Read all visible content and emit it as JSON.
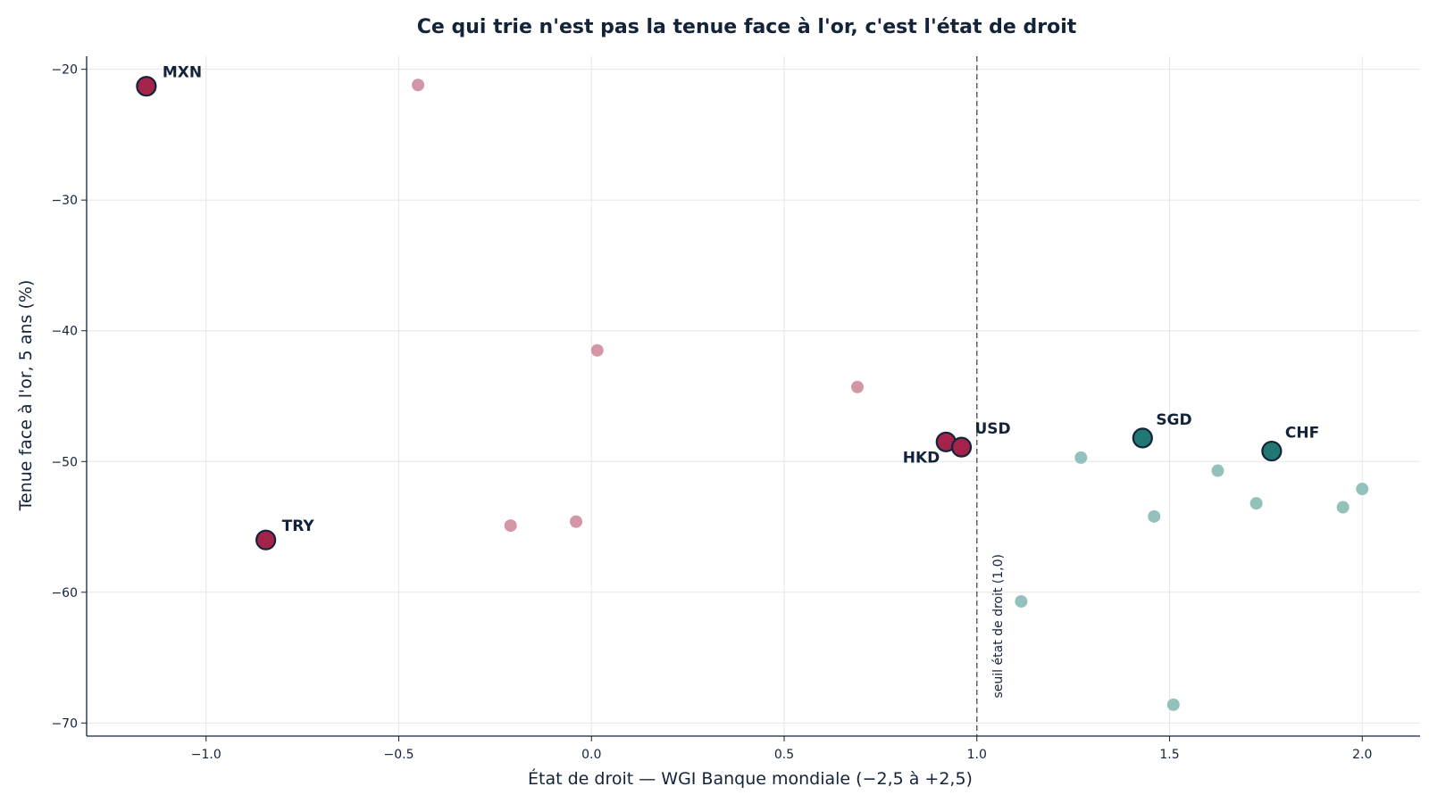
{
  "chart_data": {
    "type": "scatter",
    "title": "Ce qui trie n'est pas la tenue face à l'or, c'est l'état de droit",
    "xlabel": "État de droit — WGI Banque mondiale (−2,5 à +2,5)",
    "ylabel": "Tenue face à l'or, 5 ans (%)",
    "xlim": [
      -1.31,
      2.15
    ],
    "ylim": [
      -71.0,
      -19.0
    ],
    "xticks": [
      -1.0,
      -0.5,
      0.0,
      0.5,
      1.0,
      1.5,
      2.0
    ],
    "xtick_labels": [
      "−1.0",
      "−0.5",
      "0.0",
      "0.5",
      "1.0",
      "1.5",
      "2.0"
    ],
    "yticks": [
      -20,
      -30,
      -40,
      -50,
      -60,
      -70
    ],
    "ytick_labels": [
      "−20",
      "−30",
      "−40",
      "−50",
      "−60",
      "−70"
    ],
    "grid": true,
    "threshold": {
      "x": 1.0,
      "label": "seuil état de droit (1,0)"
    },
    "colors": {
      "below_highlight": "#a3234a",
      "below_faded": "#d396a6",
      "above_highlight": "#217873",
      "above_faded": "#93c1bb",
      "outline": "#13233a",
      "grid": "#e6e6e6"
    },
    "series": [
      {
        "group": "below",
        "points": [
          {
            "x": -1.155,
            "y": -21.3,
            "label": "MXN",
            "highlight": true
          },
          {
            "x": -0.845,
            "y": -56.0,
            "label": "TRY",
            "highlight": true
          },
          {
            "x": 0.92,
            "y": -48.5,
            "label": "HKD",
            "highlight": true
          },
          {
            "x": 0.96,
            "y": -48.9,
            "label": "USD",
            "highlight": true
          },
          {
            "x": -0.45,
            "y": -21.2,
            "highlight": false
          },
          {
            "x": 0.015,
            "y": -41.5,
            "highlight": false
          },
          {
            "x": 0.69,
            "y": -44.3,
            "highlight": false
          },
          {
            "x": -0.21,
            "y": -54.9,
            "highlight": false
          },
          {
            "x": -0.04,
            "y": -54.6,
            "highlight": false
          }
        ]
      },
      {
        "group": "above",
        "points": [
          {
            "x": 1.43,
            "y": -48.2,
            "label": "SGD",
            "highlight": true
          },
          {
            "x": 1.765,
            "y": -49.2,
            "label": "CHF",
            "highlight": true
          },
          {
            "x": 1.27,
            "y": -49.7,
            "highlight": false
          },
          {
            "x": 1.625,
            "y": -50.7,
            "highlight": false
          },
          {
            "x": 1.46,
            "y": -54.2,
            "highlight": false
          },
          {
            "x": 1.725,
            "y": -53.2,
            "highlight": false
          },
          {
            "x": 1.95,
            "y": -53.5,
            "highlight": false
          },
          {
            "x": 2.0,
            "y": -52.1,
            "highlight": false
          },
          {
            "x": 1.115,
            "y": -60.7,
            "highlight": false
          },
          {
            "x": 1.51,
            "y": -68.6,
            "highlight": false
          }
        ]
      }
    ]
  }
}
